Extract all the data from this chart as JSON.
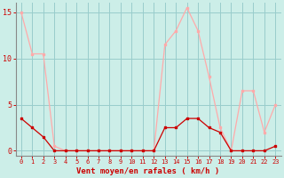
{
  "hours": [
    0,
    1,
    2,
    3,
    4,
    5,
    6,
    7,
    8,
    9,
    10,
    11,
    12,
    13,
    14,
    15,
    16,
    17,
    18,
    19,
    20,
    21,
    22,
    23
  ],
  "rafales": [
    15,
    10.5,
    10.5,
    0.5,
    0,
    0,
    0,
    0,
    0,
    0,
    0,
    0,
    0,
    11.5,
    13,
    15.5,
    13,
    8,
    2.5,
    0,
    6.5,
    6.5,
    2,
    5
  ],
  "moyen": [
    3.5,
    2.5,
    1.5,
    0,
    0,
    0,
    0,
    0,
    0,
    0,
    0,
    0,
    0,
    2.5,
    2.5,
    3.5,
    3.5,
    2.5,
    2,
    0,
    0,
    0,
    0,
    0.5
  ],
  "rafales_color": "#ffaaaa",
  "moyen_color": "#cc0000",
  "bg_color": "#cceee8",
  "grid_color": "#99cccc",
  "xlabel": "Vent moyen/en rafales ( km/h )",
  "xlabel_color": "#cc0000",
  "tick_color": "#cc0000",
  "ylim": [
    -0.5,
    16
  ],
  "yticks": [
    0,
    5,
    10,
    15
  ],
  "marker": "s",
  "marker_size": 1.8,
  "line_width": 0.9
}
